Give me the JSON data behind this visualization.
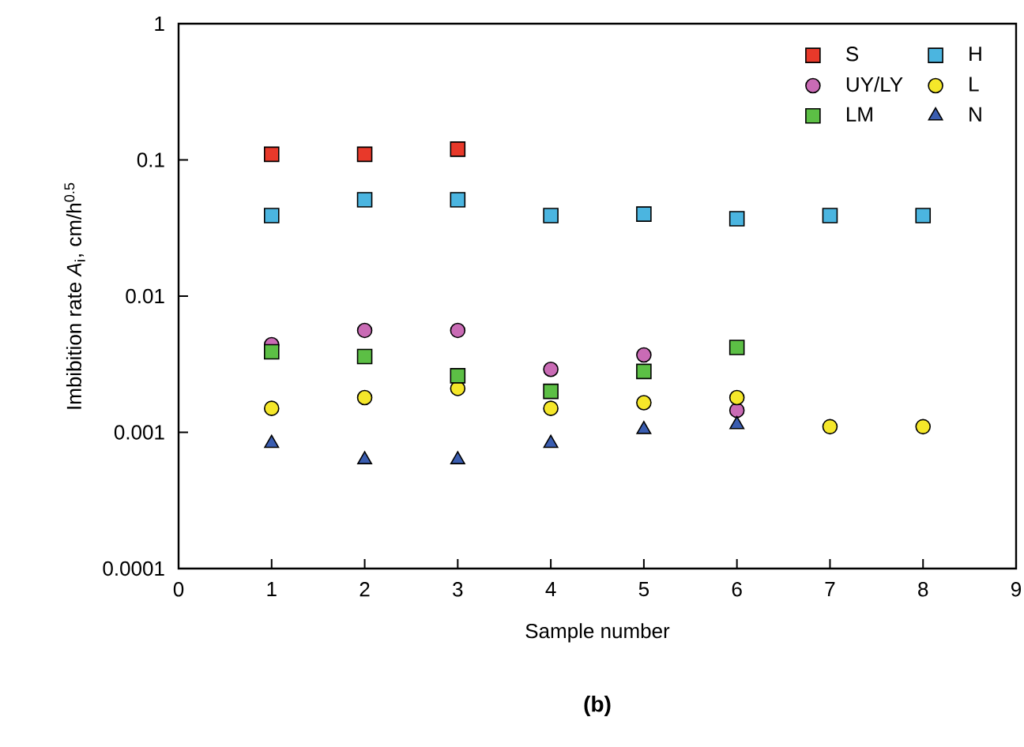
{
  "chart_data": {
    "type": "scatter",
    "xlabel": "Sample number",
    "ylabel": "Imbibition rate *A*$_{i}$, cm/h$^{0.5}$",
    "annotations": [
      "(b)"
    ],
    "x": [
      1,
      2,
      3,
      4,
      5,
      6,
      7,
      8
    ],
    "series": [
      {
        "name": "S",
        "color": "#e8392a",
        "marker": "square",
        "values": [
          0.11,
          0.11,
          0.12,
          null,
          null,
          null,
          null,
          null
        ]
      },
      {
        "name": "H",
        "color": "#4bb5e0",
        "marker": "square",
        "values": [
          0.039,
          0.051,
          0.051,
          0.039,
          0.04,
          0.037,
          0.039,
          0.039
        ]
      },
      {
        "name": "UY/LY",
        "color": "#c96bb5",
        "marker": "circle",
        "values": [
          0.0044,
          0.0056,
          0.0056,
          0.0029,
          0.0037,
          0.00145,
          null,
          null
        ]
      },
      {
        "name": "L",
        "color": "#f5e72a",
        "marker": "circle",
        "values": [
          0.0015,
          0.0018,
          0.0021,
          0.0015,
          0.00165,
          0.0018,
          0.0011,
          0.0011
        ]
      },
      {
        "name": "LM",
        "color": "#5cbf45",
        "marker": "square",
        "values": [
          0.0039,
          0.0036,
          0.0026,
          0.002,
          0.0028,
          0.0042,
          null,
          null
        ]
      },
      {
        "name": "N",
        "color": "#3a5db0",
        "marker": "triangle",
        "values": [
          0.00083,
          0.00063,
          0.00063,
          0.00083,
          0.00105,
          0.00114,
          null,
          null
        ]
      }
    ],
    "log": "y",
    "grid": false,
    "legend": "top right",
    "xlim": [
      0,
      9
    ],
    "xticks": [
      0,
      1,
      2,
      3,
      4,
      5,
      6,
      7,
      8,
      9
    ],
    "ylim": [
      0.0001,
      1
    ],
    "yticks": [
      0.0001,
      0.001,
      0.01,
      0.1,
      1
    ]
  }
}
